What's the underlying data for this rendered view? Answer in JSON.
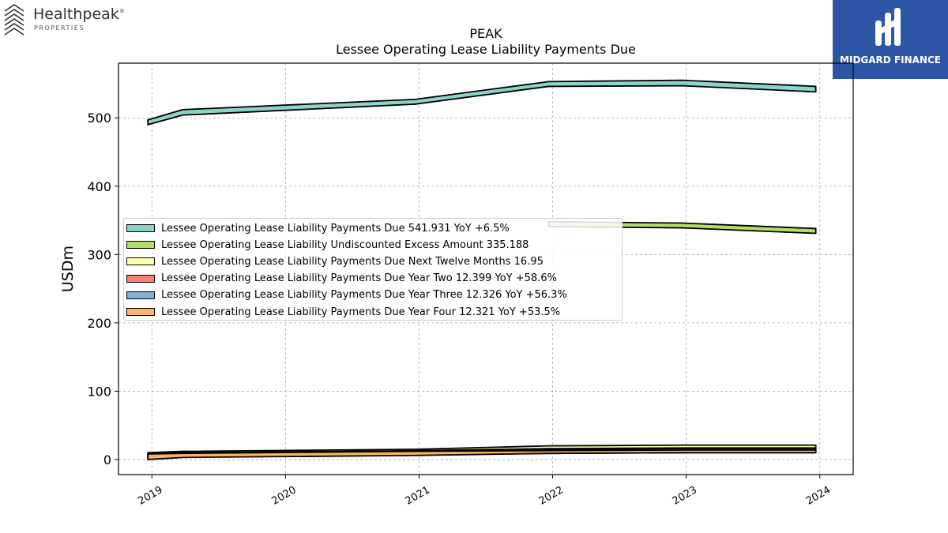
{
  "brand": {
    "name": "Healthpeak",
    "registered": "®",
    "sub": "PROPERTIES"
  },
  "badge": {
    "text": "MIDGARD FINANCE",
    "color": "#2c55a6"
  },
  "chart_data": {
    "type": "area",
    "title": "PEAK",
    "subtitle": "Lessee Operating Lease Liability Payments Due",
    "xlabel": "",
    "ylabel": "USDm",
    "ylim": [
      -22,
      580
    ],
    "xlim": [
      2018.75,
      2024.25
    ],
    "yticks": [
      0,
      100,
      200,
      300,
      400,
      500
    ],
    "xticks": [
      "2019",
      "2020",
      "2021",
      "2022",
      "2023",
      "2024"
    ],
    "grid": true,
    "legend_position": "center-left",
    "x": [
      2018.97,
      2019.23,
      2020.97,
      2021.97,
      2022.97,
      2023.97
    ],
    "series": [
      {
        "name": "Lessee Operating Lease Liability Payments Due",
        "legend": "Lessee Operating Lease Liability Payments Due  541.931 YoY +6.5%",
        "color": "#8dd3c7",
        "lower": [
          490,
          504,
          520,
          546,
          547,
          538
        ],
        "upper": [
          497,
          512,
          527,
          553,
          555,
          546
        ]
      },
      {
        "name": "Lessee Operating Lease Liability Undiscounted Excess Amount",
        "legend": "Lessee Operating Lease Liability Undiscounted Excess Amount  335.188",
        "color": "#b3de69",
        "lower": [
          null,
          null,
          null,
          341,
          339,
          331
        ],
        "upper": [
          null,
          null,
          null,
          348,
          346,
          338
        ]
      },
      {
        "name": "Lessee Operating Lease Liability Payments Due Next Twelve Months",
        "legend": "Lessee Operating Lease Liability Payments Due Next Twelve Months  16.95",
        "color": "#ffffb3",
        "lower": [
          6,
          8,
          11,
          15,
          16,
          16
        ],
        "upper": [
          10,
          12,
          15,
          20,
          21,
          21
        ]
      },
      {
        "name": "Lessee Operating Lease Liability Payments Due Year Two",
        "legend": "Lessee Operating Lease Liability Payments Due Year Two  12.399 YoY +58.6%",
        "color": "#fb8072",
        "lower": [
          4,
          6,
          9,
          11,
          12,
          12
        ],
        "upper": [
          8,
          10,
          13,
          16,
          17,
          17
        ]
      },
      {
        "name": "Lessee Operating Lease Liability Payments Due Year Three",
        "legend": "Lessee Operating Lease Liability Payments Due Year Three  12.326 YoY +56.3%",
        "color": "#80b1d3",
        "lower": [
          2,
          4,
          7,
          9,
          10,
          10
        ],
        "upper": [
          6,
          8,
          11,
          14,
          15,
          15
        ]
      },
      {
        "name": "Lessee Operating Lease Liability Payments Due Year Four",
        "legend": "Lessee Operating Lease Liability Payments Due Year Four  12.321 YoY +53.5%",
        "color": "#fdb462",
        "lower": [
          0,
          3,
          6,
          9,
          10,
          10
        ],
        "upper": [
          8,
          9,
          12,
          13,
          14,
          14
        ]
      }
    ]
  }
}
